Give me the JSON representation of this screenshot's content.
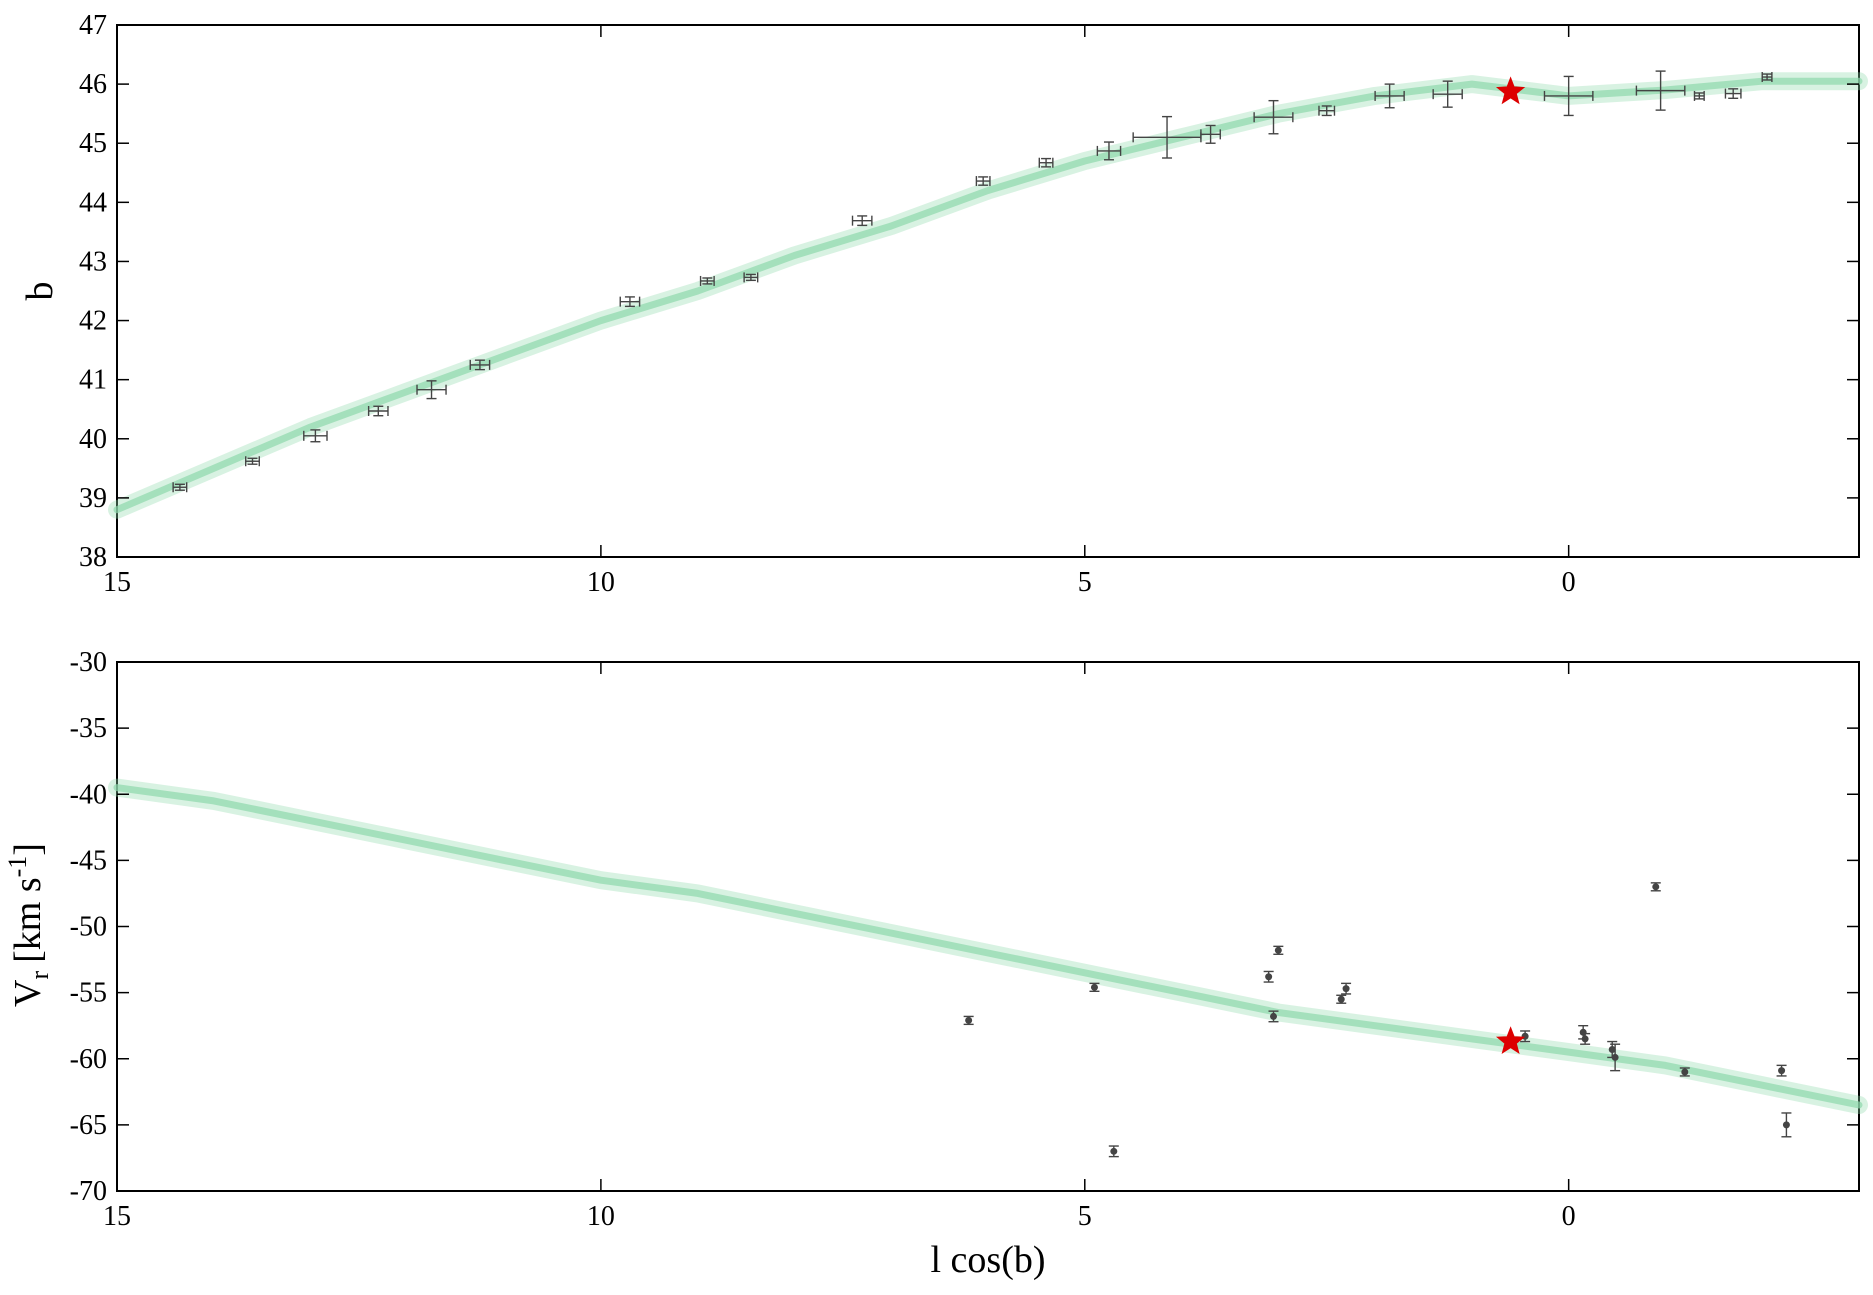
{
  "chart_data": [
    {
      "type": "scatter",
      "title": "",
      "xlabel": "",
      "ylabel": "b",
      "xlim": [
        15,
        -3
      ],
      "ylim": [
        38,
        47
      ],
      "x_inverted": true,
      "xticks": [
        15,
        10,
        5,
        0
      ],
      "yticks": [
        38,
        39,
        40,
        41,
        42,
        43,
        44,
        45,
        46,
        47
      ],
      "colors": {
        "stream": "#8fd9ad",
        "observed": "#444444",
        "star": "#dd0000"
      },
      "stream": {
        "x": [
          15,
          14,
          13,
          12,
          11,
          10,
          9,
          8,
          7,
          6,
          5,
          4,
          3,
          2,
          1,
          0,
          -1,
          -2,
          -3
        ],
        "y": [
          38.8,
          39.5,
          40.2,
          40.8,
          41.4,
          42.0,
          42.5,
          43.1,
          43.6,
          44.2,
          44.7,
          45.1,
          45.5,
          45.8,
          46.0,
          45.8,
          45.9,
          46.05,
          46.05
        ]
      },
      "points": [
        {
          "x": 14.35,
          "y": 39.18,
          "xerr": 0.07,
          "yerr": 0.05
        },
        {
          "x": 13.6,
          "y": 39.62,
          "xerr": 0.07,
          "yerr": 0.05
        },
        {
          "x": 12.95,
          "y": 40.05,
          "xerr": 0.12,
          "yerr": 0.1
        },
        {
          "x": 12.3,
          "y": 40.47,
          "xerr": 0.1,
          "yerr": 0.08
        },
        {
          "x": 11.75,
          "y": 40.83,
          "xerr": 0.15,
          "yerr": 0.15
        },
        {
          "x": 11.25,
          "y": 41.25,
          "xerr": 0.1,
          "yerr": 0.08
        },
        {
          "x": 9.7,
          "y": 42.32,
          "xerr": 0.1,
          "yerr": 0.08
        },
        {
          "x": 8.9,
          "y": 42.67,
          "xerr": 0.07,
          "yerr": 0.05
        },
        {
          "x": 8.45,
          "y": 42.73,
          "xerr": 0.07,
          "yerr": 0.05
        },
        {
          "x": 7.3,
          "y": 43.69,
          "xerr": 0.1,
          "yerr": 0.08
        },
        {
          "x": 6.05,
          "y": 44.36,
          "xerr": 0.07,
          "yerr": 0.07
        },
        {
          "x": 5.4,
          "y": 44.67,
          "xerr": 0.07,
          "yerr": 0.07
        },
        {
          "x": 4.75,
          "y": 44.87,
          "xerr": 0.12,
          "yerr": 0.15
        },
        {
          "x": 4.15,
          "y": 45.1,
          "xerr": 0.35,
          "yerr": 0.35
        },
        {
          "x": 3.7,
          "y": 45.15,
          "xerr": 0.1,
          "yerr": 0.15
        },
        {
          "x": 3.05,
          "y": 45.44,
          "xerr": 0.2,
          "yerr": 0.28
        },
        {
          "x": 2.5,
          "y": 45.55,
          "xerr": 0.08,
          "yerr": 0.08
        },
        {
          "x": 1.85,
          "y": 45.8,
          "xerr": 0.15,
          "yerr": 0.2
        },
        {
          "x": 1.25,
          "y": 45.83,
          "xerr": 0.15,
          "yerr": 0.22
        },
        {
          "x": 0.0,
          "y": 45.8,
          "xerr": 0.25,
          "yerr": 0.33
        },
        {
          "x": -0.95,
          "y": 45.89,
          "xerr": 0.25,
          "yerr": 0.33
        },
        {
          "x": -1.35,
          "y": 45.8,
          "xerr": 0.05,
          "yerr": 0.05
        },
        {
          "x": -1.7,
          "y": 45.84,
          "xerr": 0.08,
          "yerr": 0.08
        },
        {
          "x": -2.05,
          "y": 46.12,
          "xerr": 0.05,
          "yerr": 0.05
        }
      ],
      "star": {
        "x": 0.6,
        "y": 45.87
      }
    },
    {
      "type": "scatter",
      "title": "",
      "xlabel": "l cos(b)",
      "ylabel_main": "V",
      "ylabel_sub": "r",
      "ylabel_unit": "[km s",
      "ylabel_sup": "-1",
      "ylabel_close": "]",
      "xlim": [
        15,
        -3
      ],
      "ylim": [
        -70,
        -30
      ],
      "x_inverted": true,
      "xticks": [
        15,
        10,
        5,
        0
      ],
      "yticks": [
        -70,
        -65,
        -60,
        -55,
        -50,
        -45,
        -40,
        -35,
        -30
      ],
      "colors": {
        "stream": "#8fd9ad",
        "observed": "#444444",
        "star": "#dd0000"
      },
      "stream": {
        "x": [
          15,
          14,
          13,
          12,
          11,
          10,
          9,
          8,
          7,
          6,
          5,
          4,
          3,
          2,
          1,
          0,
          -1,
          -2,
          -3
        ],
        "y": [
          -39.5,
          -40.5,
          -42.0,
          -43.5,
          -45.0,
          -46.5,
          -47.5,
          -49.0,
          -50.5,
          -52.0,
          -53.5,
          -55.0,
          -56.5,
          -57.5,
          -58.5,
          -59.5,
          -60.5,
          -62.0,
          -63.5
        ]
      },
      "points": [
        {
          "x": 6.2,
          "y": -57.1,
          "yerr": 0.3
        },
        {
          "x": 4.9,
          "y": -54.6,
          "yerr": 0.3
        },
        {
          "x": 4.7,
          "y": -67.0,
          "yerr": 0.4
        },
        {
          "x": 3.1,
          "y": -53.8,
          "yerr": 0.4
        },
        {
          "x": 3.05,
          "y": -56.8,
          "yerr": 0.4
        },
        {
          "x": 3.0,
          "y": -51.8,
          "yerr": 0.3
        },
        {
          "x": 2.35,
          "y": -55.5,
          "yerr": 0.3
        },
        {
          "x": 2.3,
          "y": -54.7,
          "yerr": 0.4
        },
        {
          "x": 0.45,
          "y": -58.3,
          "yerr": 0.4
        },
        {
          "x": -0.15,
          "y": -58.0,
          "yerr": 0.5
        },
        {
          "x": -0.17,
          "y": -58.5,
          "yerr": 0.4
        },
        {
          "x": -0.45,
          "y": -59.3,
          "yerr": 0.6
        },
        {
          "x": -0.48,
          "y": -59.9,
          "yerr": 1.0
        },
        {
          "x": -0.9,
          "y": -47.0,
          "yerr": 0.3
        },
        {
          "x": -1.2,
          "y": -61.0,
          "yerr": 0.3
        },
        {
          "x": -2.2,
          "y": -60.9,
          "yerr": 0.4
        },
        {
          "x": -2.25,
          "y": -65.0,
          "yerr": 0.9
        }
      ],
      "star": {
        "x": 0.6,
        "y": -58.7
      }
    }
  ]
}
